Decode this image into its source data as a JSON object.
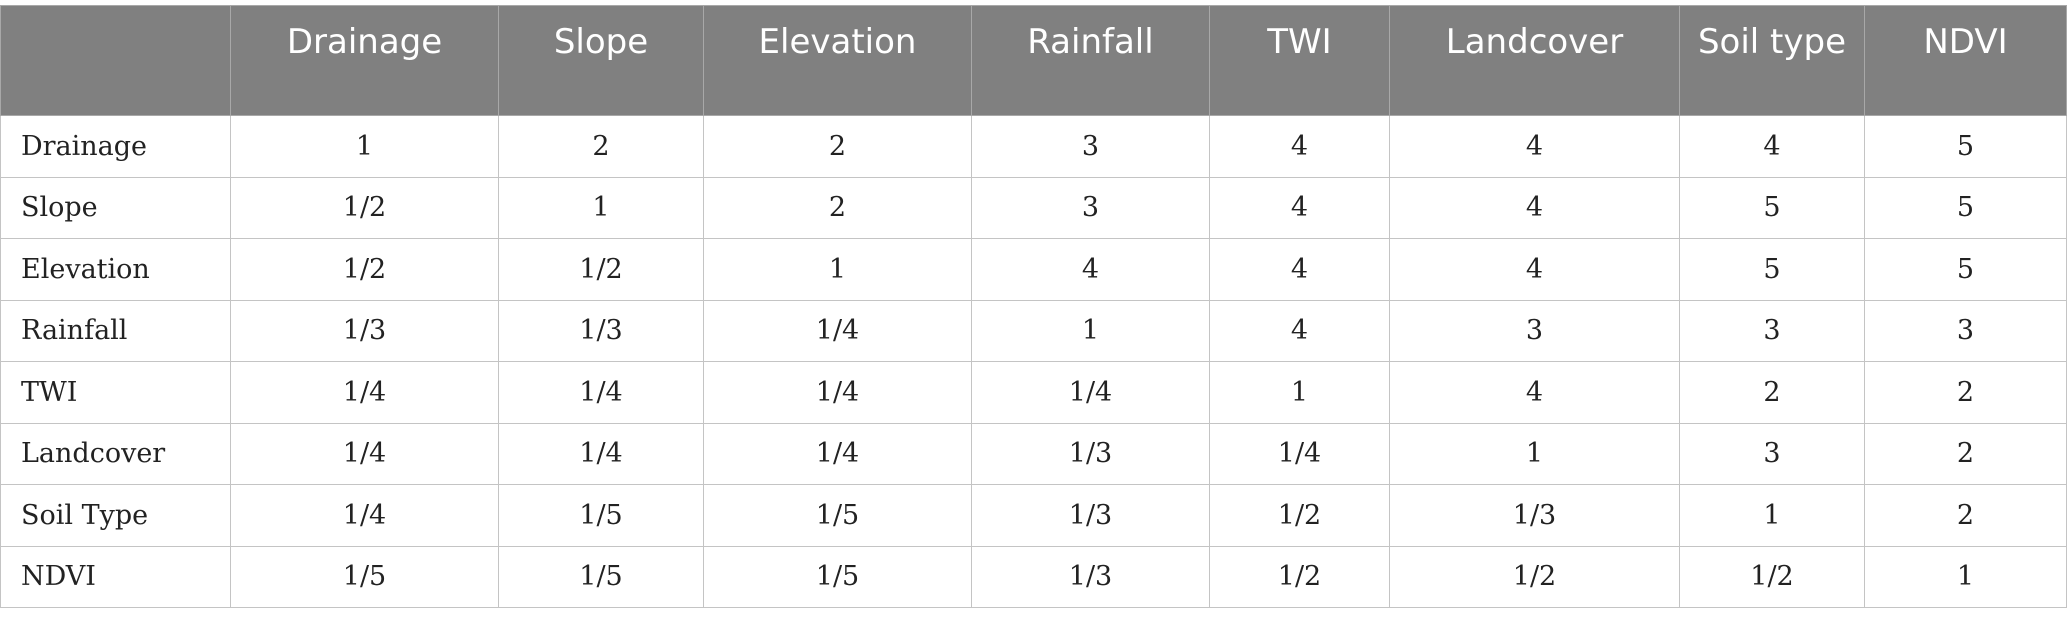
{
  "table": {
    "columns": [
      "",
      "Drainage",
      "Slope",
      "Elevation",
      "Rainfall",
      "TWI",
      "Landcover",
      "Soil type",
      "NDVI"
    ],
    "rows": [
      {
        "label": "Drainage",
        "values": [
          "1",
          "2",
          "2",
          "3",
          "4",
          "4",
          "4",
          "5"
        ]
      },
      {
        "label": "Slope",
        "values": [
          "1/2",
          "1",
          "2",
          "3",
          "4",
          "4",
          "5",
          "5"
        ]
      },
      {
        "label": "Elevation",
        "values": [
          "1/2",
          "1/2",
          "1",
          "4",
          "4",
          "4",
          "5",
          "5"
        ]
      },
      {
        "label": "Rainfall",
        "values": [
          "1/3",
          "1/3",
          "1/4",
          "1",
          "4",
          "3",
          "3",
          "3"
        ]
      },
      {
        "label": "TWI",
        "values": [
          "1/4",
          "1/4",
          "1/4",
          "1/4",
          "1",
          "4",
          "2",
          "2"
        ]
      },
      {
        "label": "Landcover",
        "values": [
          "1/4",
          "1/4",
          "1/4",
          "1/3",
          "1/4",
          "1",
          "3",
          "2"
        ]
      },
      {
        "label": "Soil Type",
        "values": [
          "1/4",
          "1/5",
          "1/5",
          "1/3",
          "1/2",
          "1/3",
          "1",
          "2"
        ]
      },
      {
        "label": "NDVI",
        "values": [
          "1/5",
          "1/5",
          "1/5",
          "1/3",
          "1/2",
          "1/2",
          "1/2",
          "1"
        ]
      }
    ]
  },
  "colors": {
    "header_background": "#808080",
    "header_text": "#ffffff",
    "grid_line": "#c4c4c4",
    "body_text": "#222222"
  }
}
